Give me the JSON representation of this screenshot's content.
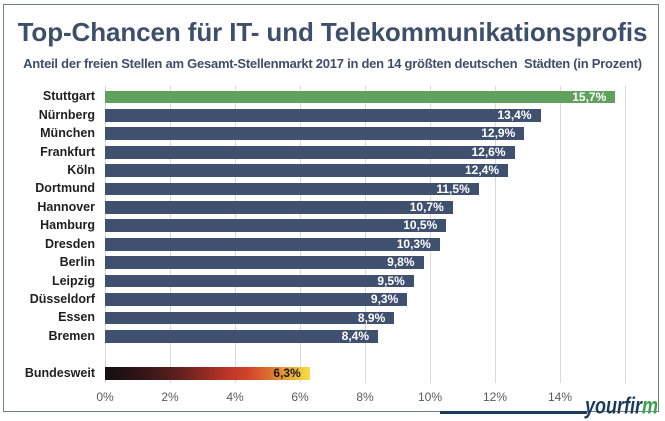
{
  "header": {
    "title": "Top-Chancen für IT- und Telekommunikationsprofis",
    "subtitle": "Anteil der freien Stellen am Gesamt-Stellenmarkt 2017 in den 14 größten deutschen  Städten (in Prozent)"
  },
  "chart_data": {
    "type": "bar",
    "orientation": "horizontal",
    "title": "Top-Chancen für IT- und Telekommunikationsprofis",
    "subtitle": "Anteil der freien Stellen am Gesamt-Stellenmarkt 2017 in den 14 größten deutschen  Städten (in Prozent)",
    "xlim": [
      0,
      16
    ],
    "x_ticks": [
      "0%",
      "2%",
      "4%",
      "6%",
      "8%",
      "10%",
      "12%",
      "14%"
    ],
    "x_tick_values": [
      0,
      2,
      4,
      6,
      8,
      10,
      12,
      14
    ],
    "grid": true,
    "xlabel": "",
    "ylabel": "",
    "legend": false,
    "categories": [
      "Stuttgart",
      "Nürnberg",
      "München",
      "Frankfurt",
      "Köln",
      "Dortmund",
      "Hannover",
      "Hamburg",
      "Dresden",
      "Berlin",
      "Leipzig",
      "Düsseldorf",
      "Essen",
      "Bremen",
      "Bundesweit"
    ],
    "values": [
      15.7,
      13.4,
      12.9,
      12.6,
      12.4,
      11.5,
      10.7,
      10.5,
      10.3,
      9.8,
      9.5,
      9.3,
      8.9,
      8.4,
      6.3
    ],
    "bars": [
      {
        "category": "Stuttgart",
        "value": 15.7,
        "label": "15,7%",
        "style": "highlight"
      },
      {
        "category": "Nürnberg",
        "value": 13.4,
        "label": "13,4%",
        "style": "normal"
      },
      {
        "category": "München",
        "value": 12.9,
        "label": "12,9%",
        "style": "normal"
      },
      {
        "category": "Frankfurt",
        "value": 12.6,
        "label": "12,6%",
        "style": "normal"
      },
      {
        "category": "Köln",
        "value": 12.4,
        "label": "12,4%",
        "style": "normal"
      },
      {
        "category": "Dortmund",
        "value": 11.5,
        "label": "11,5%",
        "style": "normal"
      },
      {
        "category": "Hannover",
        "value": 10.7,
        "label": "10,7%",
        "style": "normal"
      },
      {
        "category": "Hamburg",
        "value": 10.5,
        "label": "10,5%",
        "style": "normal"
      },
      {
        "category": "Dresden",
        "value": 10.3,
        "label": "10,3%",
        "style": "normal"
      },
      {
        "category": "Berlin",
        "value": 9.8,
        "label": "9,8%",
        "style": "normal"
      },
      {
        "category": "Leipzig",
        "value": 9.5,
        "label": "9,5%",
        "style": "normal"
      },
      {
        "category": "Düsseldorf",
        "value": 9.3,
        "label": "9,3%",
        "style": "normal"
      },
      {
        "category": "Essen",
        "value": 8.9,
        "label": "8,9%",
        "style": "normal"
      },
      {
        "category": "Bremen",
        "value": 8.4,
        "label": "8,4%",
        "style": "normal"
      },
      {
        "category": "Bundesweit",
        "value": 6.3,
        "label": "6,3%",
        "style": "gradient"
      }
    ],
    "colors": {
      "bar_normal": "#405170",
      "bar_highlight": "#5fa15d",
      "bar_gradient": [
        {
          "color": "#161013",
          "pos": 0
        },
        {
          "color": "#251114",
          "pos": 10
        },
        {
          "color": "#3c171a",
          "pos": 22
        },
        {
          "color": "#5d201d",
          "pos": 35
        },
        {
          "color": "#8c2a23",
          "pos": 48
        },
        {
          "color": "#bc3629",
          "pos": 60
        },
        {
          "color": "#d04527",
          "pos": 70
        },
        {
          "color": "#dd6f2f",
          "pos": 80
        },
        {
          "color": "#eaa338",
          "pos": 89
        },
        {
          "color": "#f1cc41",
          "pos": 96
        },
        {
          "color": "#f3dd47",
          "pos": 100
        }
      ],
      "value_label_light": "#ffffff",
      "value_label_dark": "#1a1a1a",
      "gridline": "#d9d9d9",
      "title_text": "#3e4f6b",
      "category_text": "#1f1f1f",
      "axis_text": "#595959"
    }
  },
  "logo": {
    "text_main": "yourfir",
    "text_accent": "m"
  }
}
